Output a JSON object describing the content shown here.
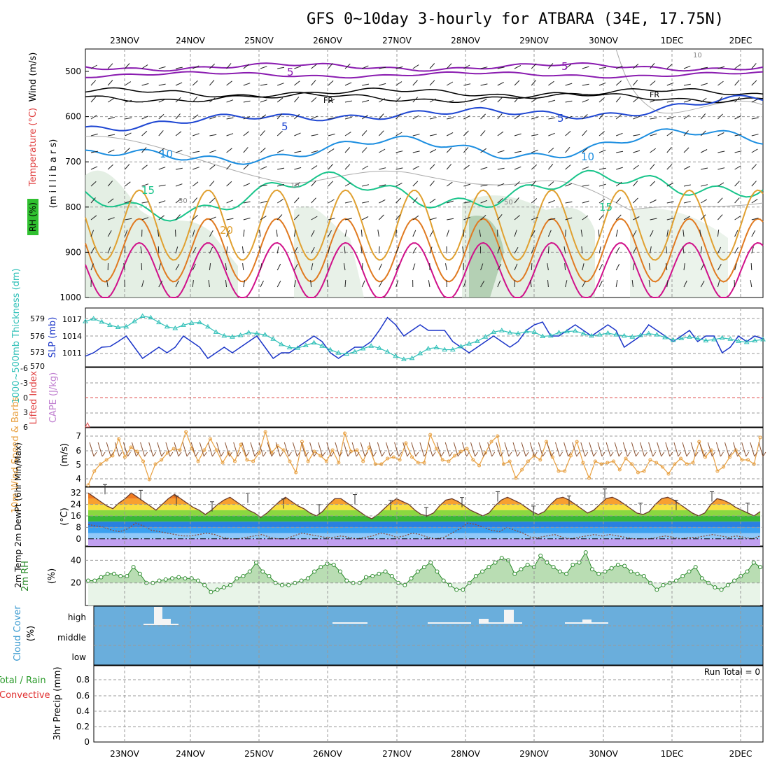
{
  "title": "GFS 0~10day 3-hourly for ATBARA (34E, 17.75N)",
  "dates": [
    "23NOV",
    "24NOV",
    "25NOV",
    "26NOV",
    "27NOV",
    "28NOV",
    "29NOV",
    "30NOV",
    "1DEC",
    "2DEC"
  ],
  "colors": {
    "temp5": "#8a1cb0",
    "freezing": "#000000",
    "temp5b": "#1e46d2",
    "temp10": "#1c8ee0",
    "temp15": "#18c48a",
    "temp20": "#e0a030",
    "temp25": "#e07a20",
    "temp30": "#d0108a",
    "rh_fill": "#d8e8d8",
    "slp": "#1a34c8",
    "thickness": "#30c0b8",
    "wind10m": "#e8a040",
    "rh2m_fill": "#a8d4a0",
    "rh2m_line": "#2a8a2a",
    "cloud_bg": "#6aaedc"
  },
  "chart_data": [
    {
      "id": "upper-air",
      "type": "contour",
      "ylabel_rh": "RH (%)",
      "ylabel_temp": "Temperature (°C)",
      "ylabel_wind": "Wind (m/s)",
      "ylabel_pres": "(m i l l i b a r s)",
      "yticks": [
        "500",
        "600",
        "700",
        "800",
        "900",
        "1000"
      ],
      "contour_labels": [
        "5",
        "FR",
        "5",
        "10",
        "15",
        "20",
        "5",
        "FR",
        "5",
        "10",
        "15",
        "10",
        "30",
        "50",
        "10"
      ],
      "temp_lines": [
        {
          "label": "5",
          "pressure": 495
        },
        {
          "label": "FR",
          "pressure": 550
        },
        {
          "label": "5",
          "pressure": 612
        },
        {
          "label": "10",
          "pressure": 690
        },
        {
          "label": "15",
          "pressure": 780
        },
        {
          "label": "20",
          "pressure": 850
        }
      ]
    },
    {
      "id": "slp-thickness",
      "type": "line",
      "ylabel_left": "1000~500mb Thickness (dm)",
      "ylabel_right": "SLP (mb)",
      "yticks_left": [
        "579",
        "576",
        "573",
        "570"
      ],
      "yticks_right": [
        "1017",
        "1014",
        "1011"
      ],
      "series": [
        {
          "name": "SLP (mb)",
          "values": [
            1010.4,
            1011,
            1012,
            1012.1,
            1013,
            1014,
            1012,
            1010,
            1011,
            1012,
            1011,
            1012,
            1014,
            1013,
            1012,
            1010,
            1011,
            1012,
            1011,
            1012,
            1013,
            1014,
            1012,
            1010,
            1011,
            1011,
            1012,
            1013,
            1014,
            1013,
            1011,
            1010,
            1011,
            1012,
            1012,
            1013,
            1015,
            1017.3,
            1016,
            1014,
            1015,
            1016,
            1015,
            1015,
            1015,
            1013,
            1012,
            1011,
            1012,
            1013,
            1014,
            1013,
            1012,
            1013,
            1015,
            1016,
            1016.5,
            1014,
            1014,
            1015,
            1016,
            1015,
            1014,
            1015,
            1016,
            1015,
            1012,
            1013,
            1014,
            1016,
            1015,
            1014,
            1013,
            1014,
            1015,
            1013,
            1014,
            1014,
            1011,
            1012,
            1014,
            1013,
            1014,
            1013.5
          ]
        },
        {
          "name": "1000~500mb Thickness (dm)",
          "values": [
            578.5,
            579,
            578.4,
            577.8,
            577.4,
            577.5,
            578.5,
            579.5,
            579.2,
            578.3,
            577.5,
            577.2,
            577.8,
            578.2,
            578.3,
            577.5,
            576.5,
            575.8,
            575.6,
            575.9,
            576.4,
            576.2,
            576.0,
            575.2,
            574.2,
            573.6,
            573.5,
            574.0,
            574.5,
            573.9,
            573.2,
            572.6,
            572.4,
            572.8,
            573.4,
            573.9,
            573.5,
            572.8,
            572.0,
            571.4,
            571.6,
            572.5,
            573.4,
            573.6,
            573.2,
            573.2,
            573.8,
            574.3,
            574.8,
            575.6,
            576.5,
            576.8,
            576.4,
            576.2,
            576.6,
            576.5,
            575.7,
            575.8,
            576.4,
            576.6,
            576.7,
            576.2,
            575.8,
            576.0,
            576.3,
            576.0,
            575.8,
            575.6,
            575.9,
            576.2,
            576.0,
            575.5,
            575.0,
            575.3,
            575.6,
            575.3,
            574.9,
            575.1,
            575.4,
            575.2,
            574.8,
            574.6,
            574.9,
            575.1
          ]
        }
      ]
    },
    {
      "id": "cape-li",
      "type": "line",
      "ylabel_left": "Lifted Index",
      "ylabel_right": "CAPE (J/kg)",
      "yticks": [
        "-6",
        "-3",
        "0",
        "3",
        "6"
      ],
      "zero_line": 0
    },
    {
      "id": "wind10m",
      "type": "line",
      "ylabel": "10m Wind Speed & Barbs",
      "unit": "(m/s)",
      "yticks": [
        "7",
        "6",
        "5",
        "4"
      ],
      "series": [
        {
          "name": "10m Wind Speed",
          "values": [
            3.5,
            4.5,
            5,
            5.3,
            5.6,
            6.8,
            5.5,
            6.2,
            5.9,
            5.2,
            3.9,
            5,
            5.3,
            5.8,
            6.1,
            6.0,
            7.3,
            6.1,
            5.2,
            6.0,
            6.8,
            6.0,
            5.1,
            5.8,
            5.2,
            6.4,
            5.3,
            5.2,
            5.8,
            7.3,
            5.8,
            6.3,
            6.0,
            5.2,
            4.4,
            6.6,
            5.2,
            5.9,
            5.6,
            5.2,
            6.0,
            5.1,
            7.2,
            5.9,
            6.0,
            5.2,
            6.2,
            5.0,
            5.0,
            5.4,
            5.5,
            5.3,
            6.5,
            5.5,
            5.1,
            5.1,
            7.1,
            6.1,
            5.3,
            5.2,
            5.6,
            5.9,
            6.1,
            5.3,
            4.9,
            5.8,
            6.6,
            7.0,
            5.0,
            5.2,
            4.0,
            4.6,
            5.2,
            5.6,
            5.3,
            6.6,
            5.5,
            4.5,
            4.5,
            5.6,
            6.6,
            5.1,
            4.0,
            5.2,
            5.0,
            5.1,
            5.2,
            4.6,
            5.4,
            5.0,
            4.4,
            4.5,
            5.3,
            5.1,
            4.8,
            4.3,
            5.0,
            5.4,
            5.0,
            5.1,
            6.6,
            5.5,
            6.0,
            4.5,
            4.8,
            5.5,
            6.0,
            5.3,
            5.3,
            5.0,
            6.9
          ]
        }
      ]
    },
    {
      "id": "temp2m",
      "type": "area",
      "ylabel": "2m Temp 2m DewPt (6hr Min/Max)",
      "unit": "(°C)",
      "yticks": [
        "32",
        "24",
        "16",
        "8",
        "0"
      ],
      "series": [
        {
          "name": "2m Temp",
          "values": [
            32,
            29,
            26,
            23,
            21,
            25,
            28,
            32,
            29,
            26,
            23,
            20,
            24,
            28,
            31,
            28,
            25,
            22,
            20,
            17,
            20,
            24,
            27,
            29,
            26,
            23,
            20,
            18,
            15,
            18,
            22,
            26,
            29,
            26,
            23,
            21,
            18,
            16,
            19,
            24,
            28,
            28,
            25,
            22,
            19,
            16,
            14,
            17,
            21,
            25,
            28,
            26,
            24,
            20,
            17,
            16,
            18,
            23,
            27,
            28,
            26,
            23,
            20,
            18,
            16,
            18,
            23,
            27,
            29,
            27,
            25,
            22,
            19,
            17,
            19,
            24,
            28,
            29,
            27,
            24,
            21,
            18,
            20,
            24,
            28,
            29,
            27,
            24,
            21,
            18,
            17,
            19,
            24,
            28,
            29,
            27,
            24,
            21,
            18,
            16,
            18,
            24,
            28,
            27,
            25,
            22,
            20,
            18,
            16,
            19
          ]
        },
        {
          "name": "2m DewPt",
          "values": [
            10,
            9,
            8,
            6,
            5,
            7,
            11,
            9,
            6,
            5,
            4,
            3,
            2,
            2,
            3,
            4,
            3,
            1,
            0,
            0,
            1,
            2,
            3,
            1,
            0,
            0,
            2,
            4,
            3,
            2,
            1,
            1,
            2,
            1,
            0,
            1,
            2,
            4,
            3,
            1,
            2,
            4,
            3,
            1,
            0,
            1,
            4,
            7,
            11,
            10,
            8,
            6,
            5,
            8,
            6,
            4,
            1,
            1,
            2,
            3,
            1,
            0,
            1,
            2,
            3,
            2,
            3,
            2,
            1,
            0,
            0,
            0,
            1,
            2,
            1,
            0,
            1,
            1,
            2,
            3,
            2,
            1,
            2,
            1,
            0,
            2
          ]
        }
      ]
    },
    {
      "id": "rh2m",
      "type": "area",
      "ylabel": "2m RH",
      "unit": "(%)",
      "yticks": [
        "40",
        "20"
      ],
      "series": [
        {
          "name": "2m RH",
          "values": [
            22,
            22,
            25,
            28,
            28,
            26,
            26,
            34,
            28,
            20,
            20,
            22,
            23,
            24,
            25,
            24,
            24,
            22,
            18,
            12,
            14,
            16,
            18,
            24,
            26,
            30,
            38,
            30,
            26,
            20,
            18,
            18,
            20,
            22,
            24,
            30,
            34,
            37,
            36,
            30,
            22,
            20,
            20,
            25,
            26,
            28,
            30,
            26,
            20,
            18,
            24,
            30,
            34,
            38,
            30,
            22,
            18,
            14,
            14,
            20,
            26,
            30,
            34,
            38,
            42,
            40,
            28,
            32,
            36,
            34,
            44,
            38,
            34,
            30,
            28,
            36,
            38,
            47,
            32,
            28,
            30,
            33,
            36,
            35,
            30,
            28,
            26,
            20,
            14,
            18,
            20,
            22,
            26,
            30,
            34,
            24,
            20,
            16,
            14,
            18,
            22,
            26,
            30,
            38,
            34
          ]
        }
      ]
    },
    {
      "id": "cloud",
      "type": "bar",
      "ylabel": "Cloud Cover",
      "unit": "(%)",
      "levels": [
        "high",
        "middle",
        "low"
      ]
    },
    {
      "id": "precip",
      "type": "bar",
      "ylabel_left": "Total / Rain",
      "ylabel_conv": "Convective",
      "ylabel": "3hr Precip (mm)",
      "yticks": [
        "0.8",
        "0.6",
        "0.4",
        "0.2",
        "0"
      ],
      "run_total": "Run Total = 0",
      "values": []
    }
  ]
}
